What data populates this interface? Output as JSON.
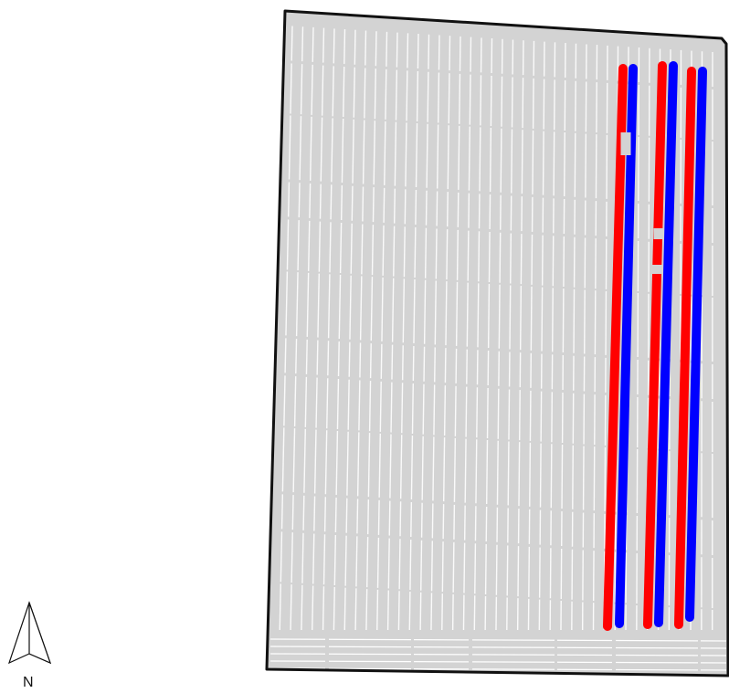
{
  "map": {
    "field_fill": "#d3d3d3",
    "field_boundary_color": "#111111",
    "background": "#ffffff",
    "north_arrow": {
      "label": "N",
      "icon": "north-arrow-icon"
    },
    "pass_colors": {
      "base": "#d3d3d3",
      "treatment_a": "#ff0000",
      "treatment_b": "#0000ff"
    },
    "highlighted_passes": [
      {
        "color": "treatment_a"
      },
      {
        "color": "treatment_b"
      },
      {
        "color": "treatment_a"
      },
      {
        "color": "treatment_b"
      },
      {
        "color": "treatment_a"
      },
      {
        "color": "treatment_b"
      }
    ]
  }
}
